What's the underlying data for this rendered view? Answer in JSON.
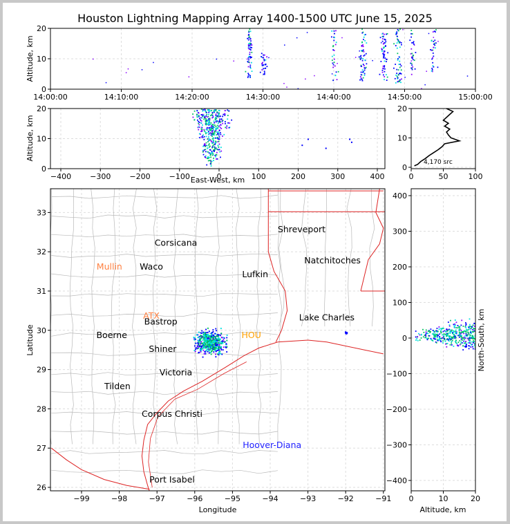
{
  "title": "Houston Lightning Mapping Array 1400-1500 UTC June 15, 2025",
  "colors": {
    "low": "#0000ff",
    "mid": "#00e0e0",
    "high": "#00c060",
    "purple": "#8800ff",
    "coast": "#dd2222",
    "county": "#b8b8b8",
    "grid": "#dddddd"
  },
  "panels": {
    "time_altitude": {
      "ylabel": "Altitude, km",
      "xticks": [
        "14:00:00",
        "14:10:00",
        "14:20:00",
        "14:30:00",
        "14:40:00",
        "14:50:00",
        "15:00:00"
      ],
      "yticks": [
        "0",
        "10",
        "20"
      ]
    },
    "ew_altitude": {
      "ylabel": "Altitude, km",
      "xlabel": "East-West, km",
      "xticks": [
        "−400",
        "−300",
        "−200",
        "−100",
        "0",
        "100",
        "200",
        "300",
        "400"
      ],
      "yticks": [
        "0",
        "10",
        "20"
      ]
    },
    "histogram": {
      "xticks": [
        "0",
        "50",
        "100"
      ],
      "yticks": [
        "0",
        "10",
        "20"
      ],
      "count_label": "4,170 src"
    },
    "map": {
      "xlabel": "Longitude",
      "ylabel": "Latitude",
      "xticks": [
        "−99",
        "−98",
        "−97",
        "−96",
        "−95",
        "−94",
        "−93",
        "−92",
        "−91"
      ],
      "yticks": [
        "26",
        "27",
        "28",
        "29",
        "30",
        "31",
        "32",
        "33"
      ]
    },
    "ns_altitude": {
      "xlabel": "Altitude, km",
      "ylabel": "North-South, km",
      "xticks": [
        "0",
        "10",
        "20"
      ],
      "yticks": [
        "−400",
        "−300",
        "−200",
        "−100",
        "0",
        "100",
        "200",
        "300",
        "400"
      ]
    }
  },
  "cities": [
    {
      "name": "Shreveport",
      "color": "#000000"
    },
    {
      "name": "Corsicana",
      "color": "#000000"
    },
    {
      "name": "Mullin",
      "color": "#ff8040"
    },
    {
      "name": "Waco",
      "color": "#000000"
    },
    {
      "name": "Natchitoches",
      "color": "#000000"
    },
    {
      "name": "Lufkin",
      "color": "#000000"
    },
    {
      "name": "ATX",
      "color": "#ff8040"
    },
    {
      "name": "Bastrop",
      "color": "#000000"
    },
    {
      "name": "Lake Charles",
      "color": "#000000"
    },
    {
      "name": "Boerne",
      "color": "#000000"
    },
    {
      "name": "Shiner",
      "color": "#000000"
    },
    {
      "name": "Victoria",
      "color": "#000000"
    },
    {
      "name": "Tilden",
      "color": "#000000"
    },
    {
      "name": "Corpus Christi",
      "color": "#000000"
    },
    {
      "name": "Hoover-Diana",
      "color": "#2020ff"
    },
    {
      "name": "Port Isabel",
      "color": "#000000"
    },
    {
      "name": "HOU",
      "color": "#ffa000"
    }
  ],
  "chart_data": [
    {
      "type": "scatter",
      "name_hint": "time-altitude",
      "xlim": [
        "14:00:00",
        "15:00:00"
      ],
      "ylim": [
        0,
        20
      ],
      "bursts": [
        {
          "t_min": 28,
          "alt_range": [
            4,
            20
          ],
          "density": "high"
        },
        {
          "t_min": 30,
          "alt_range": [
            5,
            12
          ],
          "density": "medium"
        },
        {
          "t_min": 40,
          "alt_range": [
            3,
            20
          ],
          "density": "medium"
        },
        {
          "t_min": 44,
          "alt_range": [
            3,
            20
          ],
          "density": "high"
        },
        {
          "t_min": 47,
          "alt_range": [
            3,
            20
          ],
          "density": "high"
        },
        {
          "t_min": 49,
          "alt_range": [
            2,
            20
          ],
          "density": "high"
        },
        {
          "t_min": 51,
          "alt_range": [
            5,
            20
          ],
          "density": "medium"
        },
        {
          "t_min": 54,
          "alt_range": [
            6,
            20
          ],
          "density": "medium"
        }
      ]
    },
    {
      "type": "scatter",
      "name_hint": "east-west altitude",
      "xlim": [
        -420,
        420
      ],
      "ylim": [
        0,
        20
      ],
      "main_cluster": {
        "x_range": [
          -100,
          50
        ],
        "alt_range": [
          1,
          20
        ],
        "core_x": -20
      },
      "outliers": [
        [
          210,
          8
        ],
        [
          225,
          10
        ],
        [
          270,
          7
        ],
        [
          330,
          10
        ],
        [
          335,
          9
        ]
      ]
    },
    {
      "type": "line",
      "name_hint": "altitude histogram",
      "xlim": [
        0,
        100
      ],
      "ylim": [
        0,
        20
      ],
      "alt": [
        0.5,
        1,
        2,
        3,
        4,
        5,
        6,
        7,
        8,
        9,
        10,
        11,
        12,
        13,
        14,
        15,
        16,
        17,
        18,
        19,
        20
      ],
      "count": [
        5,
        10,
        15,
        22,
        28,
        35,
        42,
        48,
        52,
        75,
        62,
        58,
        55,
        60,
        52,
        58,
        50,
        55,
        60,
        65,
        55
      ],
      "total_sources": 4170
    },
    {
      "type": "scatter",
      "name_hint": "plan-view map",
      "xlim": [
        -99.8,
        -91.0
      ],
      "ylim": [
        25.9,
        33.6
      ],
      "main_cluster": {
        "lon_range": [
          -96.2,
          -94.9
        ],
        "lat_range": [
          29.2,
          30.2
        ],
        "core": [
          -95.6,
          29.7
        ]
      },
      "secondary": [
        {
          "lon": -92.0,
          "lat": 29.95
        }
      ]
    },
    {
      "type": "scatter",
      "name_hint": "north-south altitude",
      "xlim": [
        0,
        20
      ],
      "ylim": [
        -420,
        420
      ],
      "main_cluster": {
        "ns_range": [
          -60,
          100
        ],
        "alt_range": [
          1,
          20
        ]
      }
    }
  ]
}
